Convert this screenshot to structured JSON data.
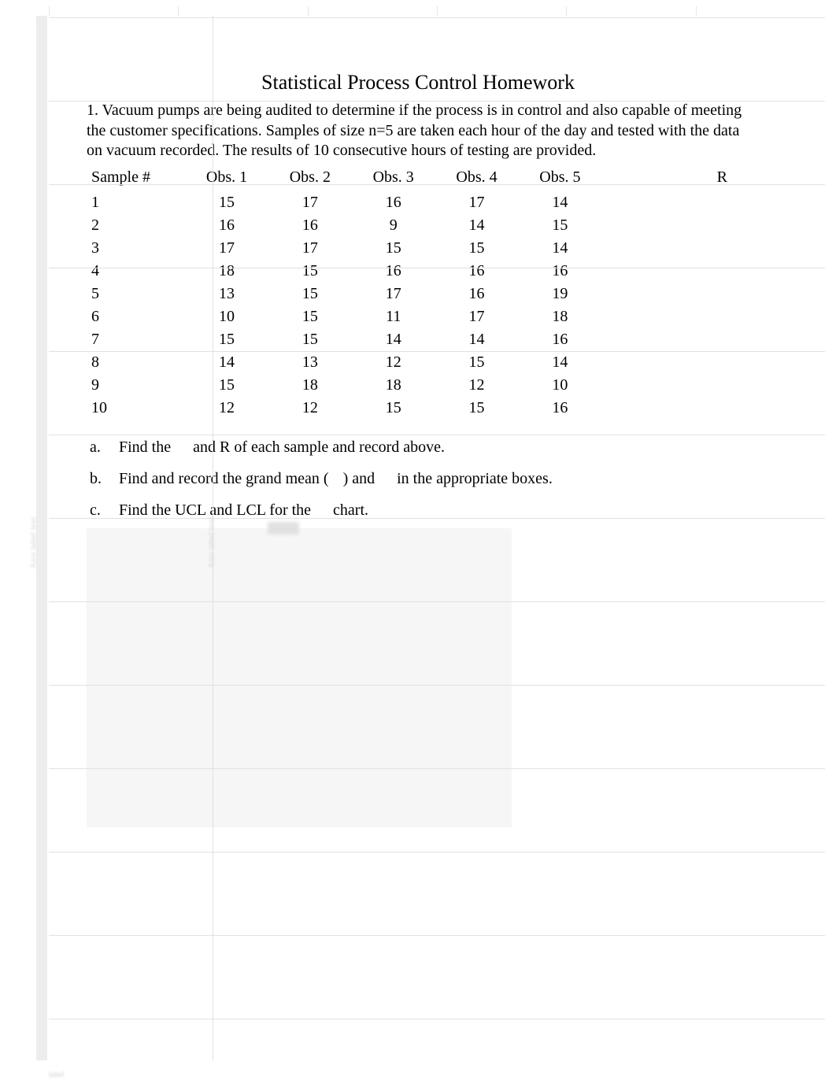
{
  "title": "Statistical Process Control Homework",
  "intro_text": "1. Vacuum pumps are being audited to determine if the process is in control and also capable of meeting the customer specifications. Samples of size n=5 are taken each hour of the day and tested with the data on vacuum recorded. The results of 10 consecutive hours of testing are provided.",
  "table": {
    "columns": [
      "Sample #",
      "Obs. 1",
      "Obs. 2",
      "Obs. 3",
      "Obs. 4",
      "Obs. 5",
      "",
      "R"
    ],
    "rows": [
      [
        "1",
        "15",
        "17",
        "16",
        "17",
        "14",
        "",
        ""
      ],
      [
        "2",
        "16",
        "16",
        "9",
        "14",
        "15",
        "",
        ""
      ],
      [
        "3",
        "17",
        "17",
        "15",
        "15",
        "14",
        "",
        ""
      ],
      [
        "4",
        "18",
        "15",
        "16",
        "16",
        "16",
        "",
        ""
      ],
      [
        "5",
        "13",
        "15",
        "17",
        "16",
        "19",
        "",
        ""
      ],
      [
        "6",
        "10",
        "15",
        "11",
        "17",
        "18",
        "",
        ""
      ],
      [
        "7",
        "15",
        "15",
        "14",
        "14",
        "16",
        "",
        ""
      ],
      [
        "8",
        "14",
        "13",
        "12",
        "15",
        "14",
        "",
        ""
      ],
      [
        "9",
        "15",
        "18",
        "18",
        "12",
        "10",
        "",
        ""
      ],
      [
        "10",
        "12",
        "12",
        "15",
        "15",
        "16",
        "",
        ""
      ]
    ]
  },
  "questions": {
    "a_label": "a.",
    "a_p1": "Find the ",
    "a_p2": " and R of each sample and record above.",
    "b_label": "b.",
    "b_p1": "Find and record the grand mean (",
    "b_p2": ") and ",
    "b_p3": " in the appropriate boxes.",
    "c_label": "c.",
    "c_p1": "Find the UCL and LCL for the ",
    "c_p2": " chart."
  },
  "styling": {
    "page_bg": "#ffffff",
    "text_color": "#000000",
    "title_fontsize": 26,
    "body_fontsize": 20,
    "font_family": "Times New Roman",
    "blur_bg": "#f6f6f6",
    "blur_grid": "#e1e1e1"
  }
}
